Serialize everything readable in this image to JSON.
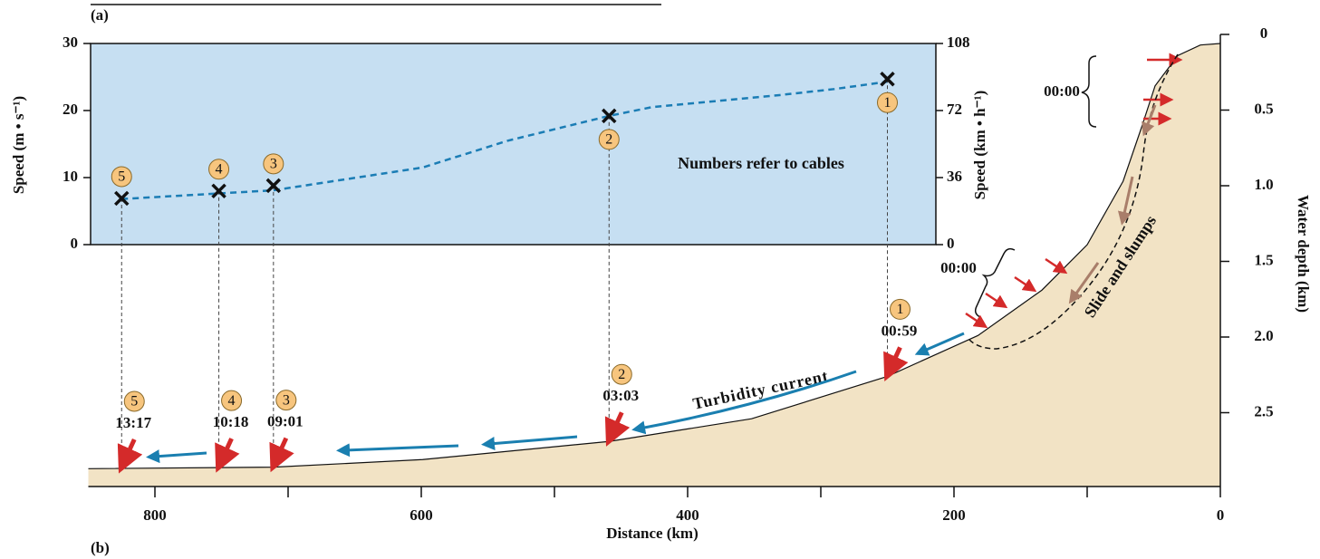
{
  "chart_data": {
    "type": "scatter",
    "panel_a_label": "(a)",
    "panel_b_label": "(b)",
    "ylabel": "Speed (m • s⁻¹)",
    "y2label": "Speed (km • h⁻¹)",
    "xlabel": "Distance (km)",
    "depth_label": "Water depth (km)",
    "note": "Numbers refer to cables",
    "current_label": "Turbidity current",
    "slide_label": "Slide and slumps",
    "slide_times": [
      "00:00",
      "00:00"
    ],
    "ylim": [
      0,
      30
    ],
    "yticks": [
      0,
      10,
      20,
      30
    ],
    "y2lim": [
      0,
      108
    ],
    "y2ticks": [
      0,
      36,
      72,
      108
    ],
    "xlim": [
      850,
      0
    ],
    "xticks": [
      800,
      600,
      400,
      200,
      0
    ],
    "xminorticks": [
      700,
      500,
      300,
      100
    ],
    "depthlim": [
      0,
      3
    ],
    "depthticks": [
      0,
      0.5,
      {
        "value": 1,
        "label": "1.0"
      },
      1.5,
      {
        "value": 2,
        "label": "2.0"
      },
      2.5
    ],
    "panel_color": "#c6dff2",
    "floor_color": "#f2e3c5",
    "cables": {
      "labels": [
        "1",
        "2",
        "3",
        "4",
        "5"
      ],
      "distance": [
        250,
        459,
        711,
        752,
        825
      ],
      "speed": [
        24.7,
        19.2,
        8.8,
        8.0,
        6.9
      ],
      "times": [
        "00:59",
        "03:03",
        "09:01",
        "10:18",
        "13:17"
      ],
      "color": "#f7c57e"
    },
    "speed_curve": {
      "distance": [
        825,
        711,
        599,
        535,
        459,
        427,
        331,
        290,
        250
      ],
      "speed": [
        6.8,
        8.1,
        11.5,
        15.5,
        19.2,
        20.5,
        22.3,
        23.2,
        24.3
      ],
      "color": "#1b7db5"
    },
    "seafloor": {
      "distance": [
        850,
        711,
        599,
        459,
        352,
        250,
        182,
        134,
        100,
        73,
        59,
        49,
        32,
        15,
        0
      ],
      "depth": [
        2.87,
        2.86,
        2.81,
        2.69,
        2.54,
        2.26,
        1.99,
        1.69,
        1.39,
        0.97,
        0.61,
        0.34,
        0.14,
        0.07,
        0.06
      ]
    }
  }
}
